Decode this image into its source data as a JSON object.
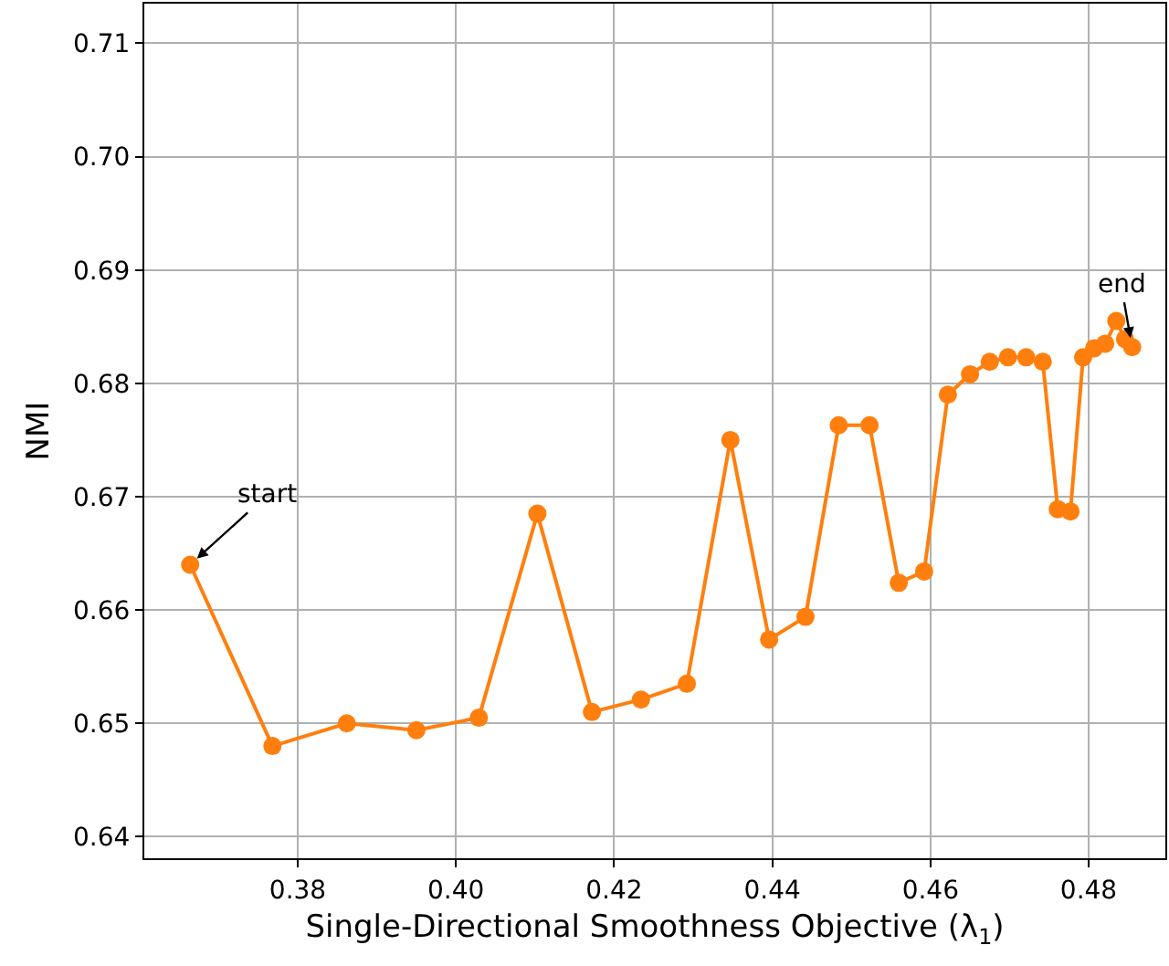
{
  "chart_data": {
    "type": "line",
    "xlabel": "Single-Directional Smoothness Objective (λ$_{1}$)",
    "ylabel": "NMI",
    "x": [
      0.3664,
      0.3768,
      0.3862,
      0.395,
      0.4029,
      0.4103,
      0.4172,
      0.4234,
      0.4292,
      0.4347,
      0.4396,
      0.4442,
      0.4484,
      0.4523,
      0.456,
      0.4592,
      0.4622,
      0.465,
      0.4675,
      0.4698,
      0.4721,
      0.4742,
      0.4761,
      0.4777,
      0.4793,
      0.4807,
      0.4821,
      0.4835,
      0.4846,
      0.4855
    ],
    "series": [
      {
        "color": "#ff7f0e",
        "values": [
          0.664,
          0.648,
          0.65,
          0.6494,
          0.6505,
          0.6685,
          0.651,
          0.6521,
          0.6535,
          0.675,
          0.6574,
          0.6594,
          0.6763,
          0.6763,
          0.6624,
          0.6634,
          0.679,
          0.6808,
          0.6819,
          0.6823,
          0.6823,
          0.6819,
          0.6689,
          0.6687,
          0.6823,
          0.6831,
          0.6835,
          0.6855,
          0.6839,
          0.6832
        ]
      }
    ],
    "xlim": [
      0.3606,
      0.4897
    ],
    "ylim": [
      0.6381,
      0.7135
    ],
    "xticks": [
      {
        "value": 0.38,
        "label": "0.38"
      },
      {
        "value": 0.4,
        "label": "0.40"
      },
      {
        "value": 0.42,
        "label": "0.42"
      },
      {
        "value": 0.44,
        "label": "0.44"
      },
      {
        "value": 0.46,
        "label": "0.46"
      },
      {
        "value": 0.48,
        "label": "0.48"
      }
    ],
    "yticks": [
      {
        "value": 0.64,
        "label": "0.64"
      },
      {
        "value": 0.65,
        "label": "0.65"
      },
      {
        "value": 0.66,
        "label": "0.66"
      },
      {
        "value": 0.67,
        "label": "0.67"
      },
      {
        "value": 0.68,
        "label": "0.68"
      },
      {
        "value": 0.69,
        "label": "0.69"
      },
      {
        "value": 0.7,
        "label": "0.70"
      },
      {
        "value": 0.71,
        "label": "0.71"
      }
    ],
    "grid": true,
    "marker": "circle",
    "annotations": [
      {
        "text": "start",
        "x": 0.3664,
        "y": 0.664
      },
      {
        "text": "end",
        "x": 0.4855,
        "y": 0.6832
      }
    ]
  }
}
